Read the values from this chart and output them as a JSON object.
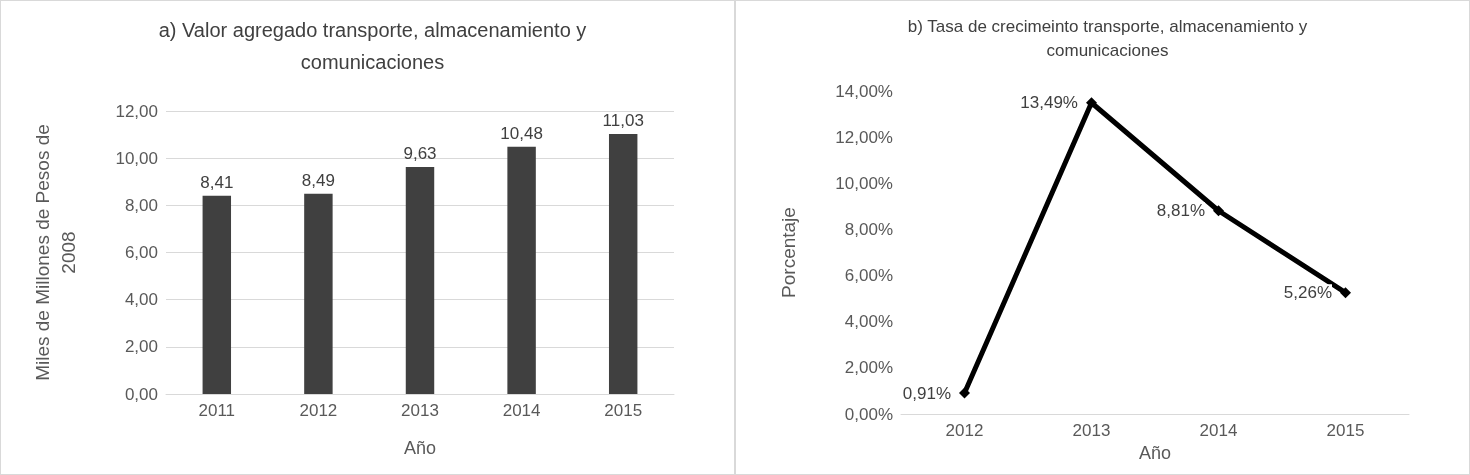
{
  "chart_data": [
    {
      "type": "bar",
      "title": "a) Valor agregado transporte, almacenamiento y\ncomunicaciones",
      "xlabel": "Año",
      "ylabel": "Miles de Millones de Pesos de\n2008",
      "categories": [
        "2011",
        "2012",
        "2013",
        "2014",
        "2015"
      ],
      "values": [
        8.41,
        8.49,
        9.63,
        10.48,
        11.03
      ],
      "value_labels": [
        "8,41",
        "8,49",
        "9,63",
        "10,48",
        "11,03"
      ],
      "color": "#404040",
      "ylim": [
        0,
        12
      ],
      "yticks": [
        {
          "value": 0,
          "label": "0,00"
        },
        {
          "value": 2,
          "label": "2,00"
        },
        {
          "value": 4,
          "label": "4,00"
        },
        {
          "value": 6,
          "label": "6,00"
        },
        {
          "value": 8,
          "label": "8,00"
        },
        {
          "value": 10,
          "label": "10,00"
        },
        {
          "value": 12,
          "label": "12,00"
        }
      ],
      "grid": "y"
    },
    {
      "type": "line",
      "title": "b) Tasa de crecimeinto transporte, almacenamiento y\ncomunicaciones",
      "xlabel": "Año",
      "ylabel": "Porcentaje",
      "categories": [
        "2012",
        "2013",
        "2014",
        "2015"
      ],
      "values": [
        0.91,
        13.49,
        8.81,
        5.26
      ],
      "value_labels": [
        "0,91%",
        "13,49%",
        "8,81%",
        "5,26%"
      ],
      "color": "#000000",
      "marker": "diamond",
      "line_style": "solid",
      "ylim": [
        0,
        14
      ],
      "yticks": [
        {
          "value": 0,
          "label": "0,00%"
        },
        {
          "value": 2,
          "label": "2,00%"
        },
        {
          "value": 4,
          "label": "4,00%"
        },
        {
          "value": 6,
          "label": "6,00%"
        },
        {
          "value": 8,
          "label": "8,00%"
        },
        {
          "value": 10,
          "label": "10,00%"
        },
        {
          "value": 12,
          "label": "12,00%"
        },
        {
          "value": 14,
          "label": "14,00%"
        }
      ],
      "grid": false
    }
  ]
}
